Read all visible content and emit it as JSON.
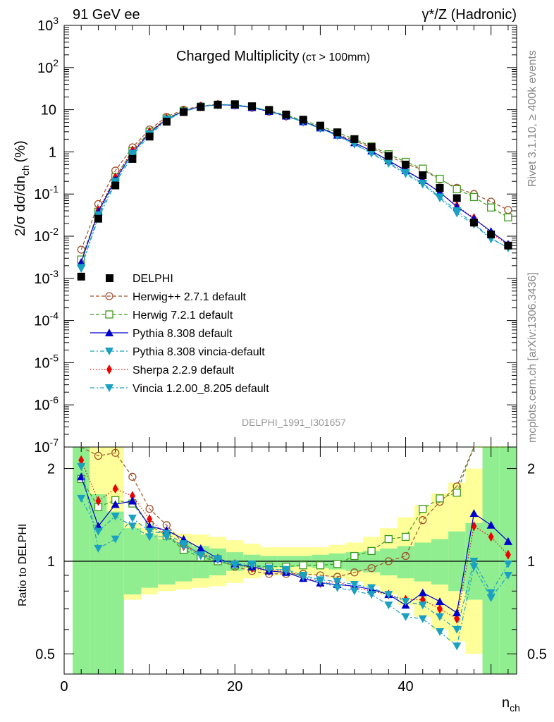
{
  "header": {
    "left": "91 GeV ee",
    "right": "γ*/Z (Hadronic)"
  },
  "side_labels": {
    "rivet": "Rivet 3.1.10, ≥ 400k events",
    "mcplots": "mcplots.cern.ch [arXiv:1306.3436]"
  },
  "colors": {
    "data": "#000000",
    "herwigpp": "#a0522d",
    "herwig7": "#3a9a1a",
    "pythia": "#0000cc",
    "pythia_vincia": "#1aa0c0",
    "sherpa": "#ee0000",
    "vincia": "#1aa0c0",
    "band_inner": "#90ee90",
    "band_outer": "#ffff99"
  },
  "chart_data": {
    "type": "scatter",
    "title": "Charged Multiplicity",
    "title_sub": "(cτ > 100mm)",
    "watermark": "DELPHI_1991_I301657",
    "ylabel": "2/σ dσ/dn",
    "ylabel_sub": "ch",
    "ylabel_unit": "(%)",
    "xlabel": "n",
    "xlabel_sub": "ch",
    "yscale": "log",
    "ylim": [
      1e-07,
      1000
    ],
    "xlim": [
      0,
      53
    ],
    "ytick_base": "10",
    "yticks_exp": [
      "-7",
      "-6",
      "-5",
      "-4",
      "-3",
      "-2",
      "-1"
    ],
    "yticks_plain": [
      "1",
      "10"
    ],
    "yticks_exp_top": [
      "2",
      "3"
    ],
    "xticks": [
      "0",
      "20",
      "40"
    ],
    "ratio": {
      "ylabel": "Ratio to DELPHI",
      "yscale": "log",
      "ylim": [
        0.43,
        2.35
      ],
      "yticks": [
        "0.5",
        "1",
        "2"
      ],
      "band_edges": [
        1,
        3,
        5,
        7,
        9,
        11,
        13,
        15,
        17,
        19,
        21,
        23,
        25,
        27,
        29,
        31,
        33,
        35,
        37,
        39,
        41,
        43,
        45,
        47,
        49,
        51,
        53
      ],
      "band_inner": [
        [
          0.43,
          2.35
        ],
        [
          0.43,
          1.65
        ],
        [
          0.43,
          1.45
        ],
        [
          0.78,
          1.28
        ],
        [
          0.82,
          1.22
        ],
        [
          0.84,
          1.18
        ],
        [
          0.86,
          1.15
        ],
        [
          0.88,
          1.12
        ],
        [
          0.9,
          1.1
        ],
        [
          0.93,
          1.07
        ],
        [
          0.95,
          1.05
        ],
        [
          0.96,
          1.04
        ],
        [
          0.96,
          1.04
        ],
        [
          0.96,
          1.04
        ],
        [
          0.95,
          1.05
        ],
        [
          0.94,
          1.06
        ],
        [
          0.93,
          1.07
        ],
        [
          0.92,
          1.08
        ],
        [
          0.9,
          1.1
        ],
        [
          0.88,
          1.12
        ],
        [
          0.86,
          1.15
        ],
        [
          0.84,
          1.18
        ],
        [
          0.8,
          1.25
        ],
        [
          0.75,
          1.33
        ],
        [
          0.43,
          2.35
        ],
        [
          0.43,
          2.35
        ]
      ],
      "band_outer": [
        [
          0.43,
          2.35
        ],
        [
          0.43,
          2.35
        ],
        [
          0.43,
          2.35
        ],
        [
          0.75,
          1.33
        ],
        [
          0.78,
          1.28
        ],
        [
          0.8,
          1.25
        ],
        [
          0.81,
          1.23
        ],
        [
          0.82,
          1.22
        ],
        [
          0.83,
          1.2
        ],
        [
          0.85,
          1.17
        ],
        [
          0.88,
          1.14
        ],
        [
          0.9,
          1.11
        ],
        [
          0.9,
          1.11
        ],
        [
          0.9,
          1.11
        ],
        [
          0.9,
          1.11
        ],
        [
          0.88,
          1.13
        ],
        [
          0.86,
          1.15
        ],
        [
          0.83,
          1.2
        ],
        [
          0.78,
          1.28
        ],
        [
          0.72,
          1.39
        ],
        [
          0.66,
          1.52
        ],
        [
          0.6,
          1.66
        ],
        [
          0.55,
          1.8
        ],
        [
          0.5,
          2.0
        ],
        [
          0.43,
          2.35
        ],
        [
          0.43,
          2.35
        ]
      ]
    },
    "x": [
      2,
      4,
      6,
      8,
      10,
      12,
      14,
      16,
      18,
      20,
      22,
      24,
      26,
      28,
      30,
      32,
      34,
      36,
      38,
      40,
      42,
      44,
      46,
      48,
      50,
      52
    ],
    "series": [
      {
        "name": "DELPHI",
        "key": "data",
        "marker": "square",
        "values": [
          0.0011,
          0.026,
          0.16,
          0.68,
          2.3,
          5.2,
          8.8,
          11.6,
          13.2,
          13.5,
          12.1,
          9.9,
          7.7,
          5.8,
          4.2,
          2.9,
          2.0,
          1.3,
          0.8,
          0.5,
          0.28,
          0.14,
          0.08,
          0.021,
          0.011,
          0.006
        ],
        "ratio": [
          1,
          1,
          1,
          1,
          1,
          1,
          1,
          1,
          1,
          1,
          1,
          1,
          1,
          1,
          1,
          1,
          1,
          1,
          1,
          1,
          1,
          1,
          1,
          1,
          1,
          1
        ]
      },
      {
        "name": "Herwig++ 2.7.1 default",
        "key": "herwigpp",
        "marker": "circle-open",
        "line": "dashed",
        "values": [
          0.0048,
          0.058,
          0.36,
          1.28,
          3.4,
          6.8,
          10.0,
          12.2,
          13.4,
          12.9,
          11.2,
          9.0,
          7.0,
          5.3,
          3.8,
          2.6,
          1.85,
          1.25,
          0.8,
          0.52,
          0.38,
          0.22,
          0.14,
          0.1,
          0.066,
          0.042
        ],
        "ratio": [
          2.6,
          2.2,
          2.25,
          1.88,
          1.48,
          1.31,
          1.14,
          1.05,
          1.01,
          0.96,
          0.93,
          0.91,
          0.91,
          0.91,
          0.9,
          0.89,
          0.92,
          0.95,
          1.0,
          1.04,
          1.36,
          1.56,
          1.75,
          2.6,
          2.6,
          2.6
        ]
      },
      {
        "name": "Herwig 7.2.1 default",
        "key": "herwig7",
        "marker": "square-open",
        "line": "dashed",
        "values": [
          0.0028,
          0.038,
          0.25,
          1.05,
          3.0,
          6.2,
          9.4,
          11.8,
          13.1,
          13.0,
          11.6,
          9.5,
          7.4,
          5.6,
          4.1,
          2.9,
          2.0,
          1.35,
          0.88,
          0.58,
          0.4,
          0.23,
          0.13,
          0.085,
          0.048,
          0.028
        ],
        "ratio": [
          1.85,
          1.5,
          1.58,
          1.54,
          1.31,
          1.21,
          1.09,
          1.03,
          1.0,
          0.97,
          0.96,
          0.96,
          0.96,
          0.97,
          0.97,
          0.98,
          1.04,
          1.08,
          1.18,
          1.2,
          1.48,
          1.6,
          1.67,
          2.6,
          2.6,
          2.6
        ]
      },
      {
        "name": "Pythia 8.308 default",
        "key": "pythia",
        "marker": "triangle-up",
        "line": "solid",
        "values": [
          0.0024,
          0.038,
          0.22,
          0.95,
          2.8,
          6.0,
          9.3,
          11.9,
          13.1,
          12.7,
          11.3,
          9.1,
          7.1,
          5.2,
          3.7,
          2.5,
          1.65,
          1.05,
          0.62,
          0.36,
          0.21,
          0.11,
          0.05,
          0.026,
          0.013,
          0.0065
        ],
        "ratio": [
          1.88,
          1.3,
          1.53,
          1.57,
          1.3,
          1.26,
          1.18,
          1.1,
          1.02,
          0.98,
          0.96,
          0.93,
          0.92,
          0.88,
          0.85,
          0.84,
          0.83,
          0.81,
          0.78,
          0.72,
          0.79,
          0.74,
          0.68,
          1.43,
          1.31,
          1.16
        ]
      },
      {
        "name": "Pythia 8.308 vincia-default",
        "key": "pythia_vincia",
        "marker": "triangle-down",
        "line": "dashdot",
        "values": [
          0.0017,
          0.032,
          0.2,
          0.92,
          2.7,
          5.9,
          9.2,
          11.8,
          13.2,
          12.9,
          11.5,
          9.2,
          7.1,
          5.1,
          3.6,
          2.4,
          1.55,
          0.95,
          0.56,
          0.32,
          0.18,
          0.085,
          0.04,
          0.02,
          0.009,
          0.0052
        ],
        "ratio": [
          1.6,
          1.25,
          1.4,
          1.3,
          1.2,
          1.2,
          1.12,
          1.04,
          1.01,
          0.97,
          0.97,
          0.94,
          0.94,
          0.9,
          0.87,
          0.86,
          0.84,
          0.82,
          0.78,
          0.74,
          0.72,
          0.66,
          0.6,
          1.0,
          0.79,
          0.98
        ]
      },
      {
        "name": "Sherpa 2.2.9 default",
        "key": "sherpa",
        "marker": "diamond",
        "line": "dotted",
        "values": [
          0.0023,
          0.041,
          0.25,
          1.08,
          3.0,
          6.2,
          9.5,
          12.0,
          13.3,
          12.9,
          11.4,
          9.2,
          7.1,
          5.2,
          3.7,
          2.5,
          1.65,
          1.05,
          0.62,
          0.37,
          0.21,
          0.11,
          0.052,
          0.027,
          0.012,
          0.0062
        ],
        "ratio": [
          2.13,
          1.57,
          1.72,
          1.63,
          1.37,
          1.21,
          1.12,
          1.06,
          1.02,
          0.98,
          0.95,
          0.93,
          0.93,
          0.89,
          0.85,
          0.86,
          0.82,
          0.8,
          0.78,
          0.75,
          0.75,
          0.7,
          0.65,
          1.3,
          1.2,
          1.05
        ]
      },
      {
        "name": "Vincia 1.2.00_8.205 default",
        "key": "vincia",
        "marker": "triangle-down",
        "line": "dashdot",
        "values": [
          0.0018,
          0.027,
          0.18,
          0.82,
          2.5,
          5.6,
          9.0,
          11.8,
          13.3,
          13.1,
          11.7,
          9.4,
          7.2,
          5.2,
          3.6,
          2.4,
          1.5,
          0.92,
          0.53,
          0.3,
          0.17,
          0.08,
          0.035,
          0.019,
          0.0085,
          0.0055
        ],
        "ratio": [
          2.03,
          1.1,
          1.18,
          1.38,
          1.25,
          1.23,
          1.14,
          1.05,
          1.02,
          0.98,
          0.98,
          0.95,
          0.93,
          0.89,
          0.86,
          0.82,
          0.8,
          0.78,
          0.72,
          0.66,
          0.65,
          0.59,
          0.53,
          0.96,
          0.76,
          0.9
        ]
      }
    ]
  }
}
